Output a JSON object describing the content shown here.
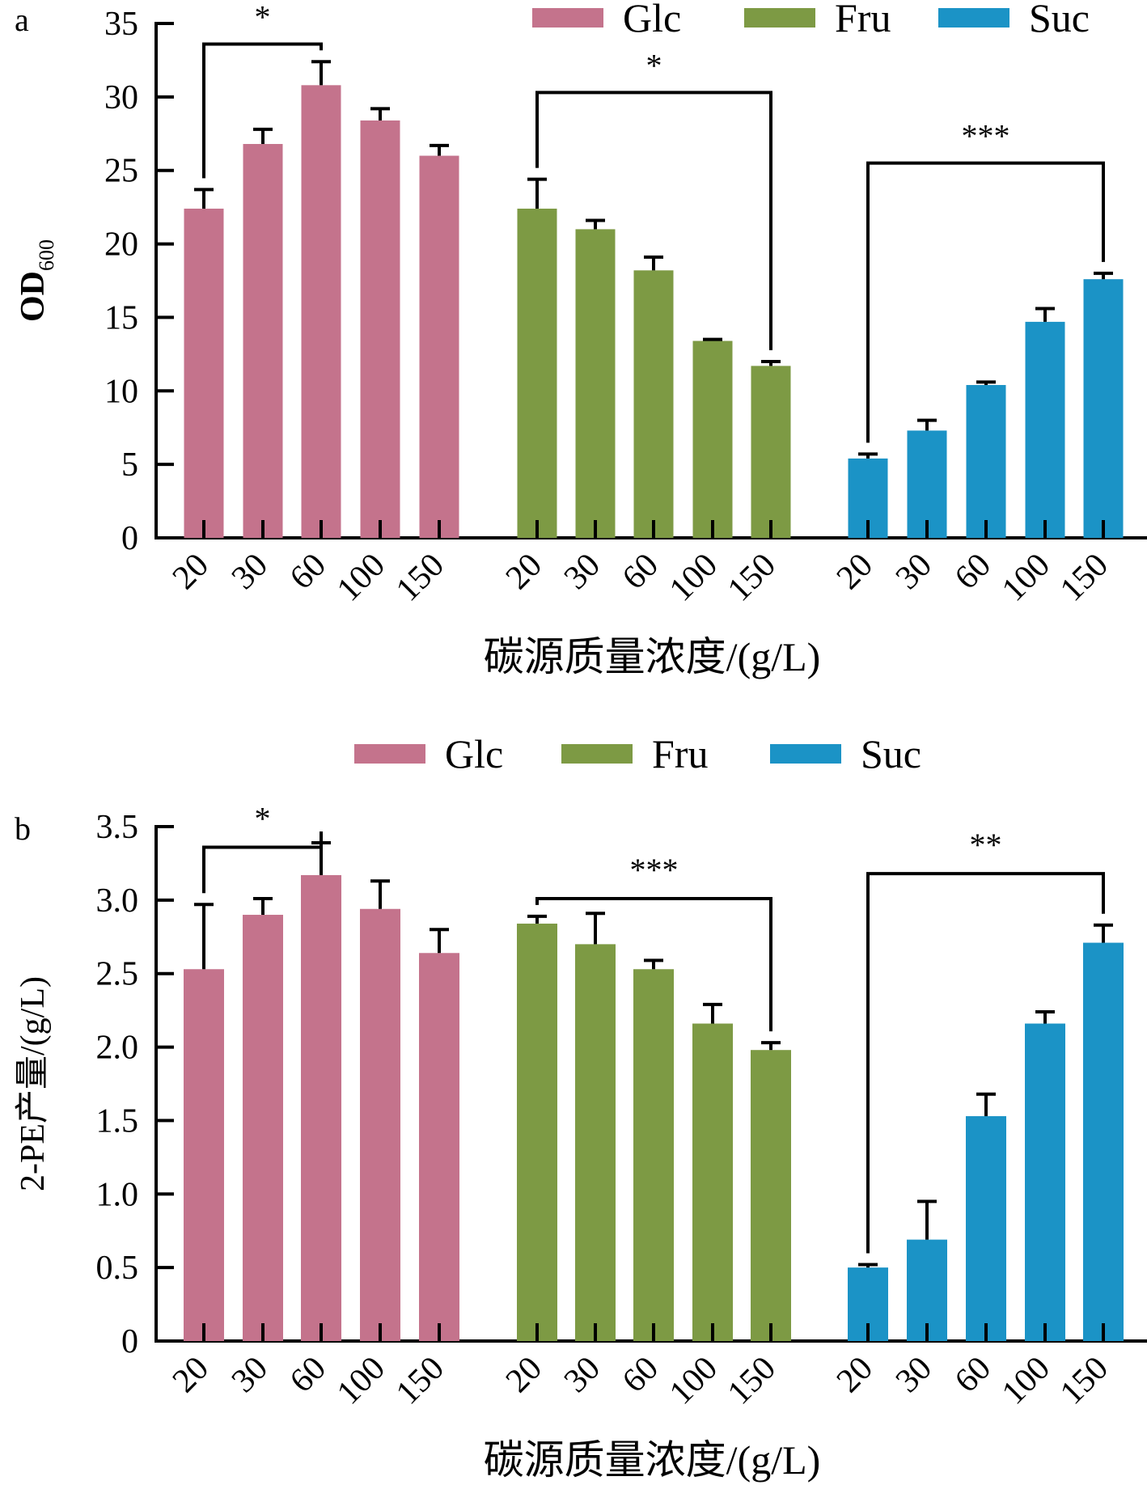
{
  "chart_data": [
    {
      "panel": "a",
      "type": "bar",
      "title": "",
      "ylabel_main": "OD",
      "ylabel_sub": "600",
      "xlabel": "碳源质量浓度/(g/L)",
      "ylim": [
        0,
        35
      ],
      "yticks": [
        0,
        5,
        10,
        15,
        20,
        25,
        30,
        35
      ],
      "ytick_labels": [
        "0",
        "5",
        "10",
        "15",
        "20",
        "25",
        "30",
        "35"
      ],
      "categories": [
        "20",
        "30",
        "60",
        "100",
        "150"
      ],
      "legend": {
        "placement": "top",
        "entries": [
          "Glc",
          "Fru",
          "Suc"
        ]
      },
      "series": [
        {
          "name": "Glc",
          "color": "#c4738c",
          "values": [
            22.4,
            26.8,
            30.8,
            28.4,
            26.0
          ],
          "errors": [
            1.3,
            1.0,
            1.6,
            0.8,
            0.7
          ]
        },
        {
          "name": "Fru",
          "color": "#7d9a44",
          "values": [
            22.4,
            21.0,
            18.2,
            13.4,
            11.7
          ],
          "errors": [
            2.0,
            0.6,
            0.9,
            0.1,
            0.3
          ]
        },
        {
          "name": "Suc",
          "color": "#1b93c6",
          "values": [
            5.4,
            7.3,
            10.4,
            14.7,
            17.6
          ],
          "errors": [
            0.3,
            0.7,
            0.2,
            0.9,
            0.4
          ]
        }
      ],
      "significance": [
        {
          "series": "Glc",
          "from": "20",
          "to": "60",
          "label": "*"
        },
        {
          "series": "Fru",
          "from": "20",
          "to": "150",
          "label": "*"
        },
        {
          "series": "Suc",
          "from": "20",
          "to": "150",
          "label": "***"
        }
      ]
    },
    {
      "panel": "b",
      "type": "bar",
      "title": "",
      "ylabel_main": "2-PE产量/(g/L)",
      "ylabel_sub": "",
      "xlabel": "碳源质量浓度/(g/L)",
      "ylim": [
        0,
        3.5
      ],
      "yticks": [
        0,
        0.5,
        1.0,
        1.5,
        2.0,
        2.5,
        3.0,
        3.5
      ],
      "ytick_labels": [
        "0",
        "0.5",
        "1.0",
        "1.5",
        "2.0",
        "2.5",
        "3.0",
        "3.5"
      ],
      "categories": [
        "20",
        "30",
        "60",
        "100",
        "150"
      ],
      "legend": {
        "placement": "top",
        "entries": [
          "Glc",
          "Fru",
          "Suc"
        ]
      },
      "series": [
        {
          "name": "Glc",
          "color": "#c4738c",
          "values": [
            2.53,
            2.9,
            3.17,
            2.94,
            2.64
          ],
          "errors": [
            0.44,
            0.11,
            0.22,
            0.19,
            0.16
          ]
        },
        {
          "name": "Fru",
          "color": "#7d9a44",
          "values": [
            2.84,
            2.7,
            2.53,
            2.16,
            1.98
          ],
          "errors": [
            0.05,
            0.21,
            0.06,
            0.13,
            0.05
          ]
        },
        {
          "name": "Suc",
          "color": "#1b93c6",
          "values": [
            0.5,
            0.69,
            1.53,
            2.16,
            2.71
          ],
          "errors": [
            0.02,
            0.26,
            0.15,
            0.08,
            0.12
          ]
        }
      ],
      "significance": [
        {
          "series": "Glc",
          "from": "20",
          "to": "60",
          "label": "*"
        },
        {
          "series": "Fru",
          "from": "20",
          "to": "150",
          "label": "***"
        },
        {
          "series": "Suc",
          "from": "20",
          "to": "150",
          "label": "**"
        }
      ]
    }
  ]
}
